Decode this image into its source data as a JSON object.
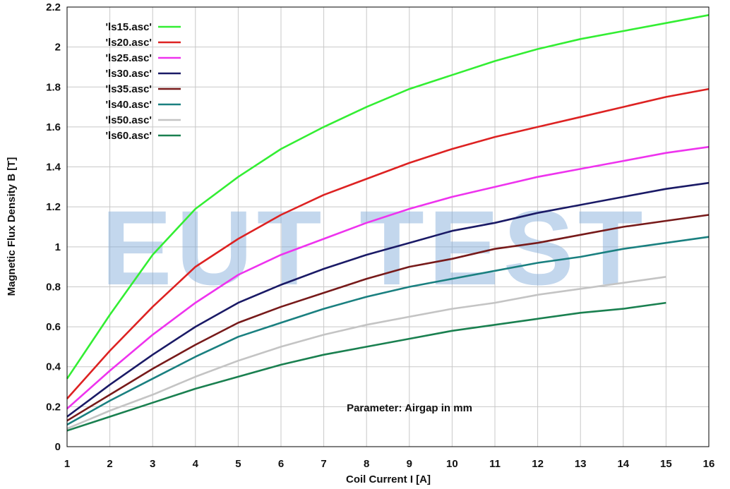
{
  "watermark": "EUT TEST",
  "chart_data": {
    "type": "line",
    "title": "",
    "xlabel": "Coil Current I [A]",
    "ylabel": "Magnetic Flux Density B [T]",
    "xlim": [
      1,
      16
    ],
    "ylim": [
      0,
      2.2
    ],
    "xticks": [
      1,
      2,
      3,
      4,
      5,
      6,
      7,
      8,
      9,
      10,
      11,
      12,
      13,
      14,
      15,
      16
    ],
    "yticks": [
      0,
      0.2,
      0.4,
      0.6,
      0.8,
      1,
      1.2,
      1.4,
      1.6,
      1.8,
      2,
      2.2
    ],
    "grid": true,
    "legend_position": "top-left",
    "annotation": "Parameter: Airgap in mm",
    "x": [
      1,
      2,
      3,
      4,
      5,
      6,
      7,
      8,
      9,
      10,
      11,
      12,
      13,
      14,
      15,
      16
    ],
    "series": [
      {
        "name": "'ls15.asc'",
        "color": "#33ee33",
        "values": [
          0.34,
          0.66,
          0.96,
          1.19,
          1.35,
          1.49,
          1.6,
          1.7,
          1.79,
          1.86,
          1.93,
          1.99,
          2.04,
          2.08,
          2.12,
          2.16
        ]
      },
      {
        "name": "'ls20.asc'",
        "color": "#dd2222",
        "values": [
          0.24,
          0.48,
          0.7,
          0.9,
          1.04,
          1.16,
          1.26,
          1.34,
          1.42,
          1.49,
          1.55,
          1.6,
          1.65,
          1.7,
          1.75,
          1.79
        ]
      },
      {
        "name": "'ls25.asc'",
        "color": "#ee33ee",
        "values": [
          0.19,
          0.38,
          0.56,
          0.72,
          0.86,
          0.96,
          1.04,
          1.12,
          1.19,
          1.25,
          1.3,
          1.35,
          1.39,
          1.43,
          1.47,
          1.5
        ]
      },
      {
        "name": "'ls30.asc'",
        "color": "#1a1a66",
        "values": [
          0.15,
          0.31,
          0.46,
          0.6,
          0.72,
          0.81,
          0.89,
          0.96,
          1.02,
          1.08,
          1.12,
          1.17,
          1.21,
          1.25,
          1.29,
          1.32
        ]
      },
      {
        "name": "'ls35.asc'",
        "color": "#771a1a",
        "values": [
          0.13,
          0.26,
          0.39,
          0.51,
          0.62,
          0.7,
          0.77,
          0.84,
          0.9,
          0.94,
          0.99,
          1.02,
          1.06,
          1.1,
          1.13,
          1.16
        ]
      },
      {
        "name": "'ls40.asc'",
        "color": "#1a8080",
        "values": [
          0.11,
          0.23,
          0.34,
          0.45,
          0.55,
          0.62,
          0.69,
          0.75,
          0.8,
          0.84,
          0.88,
          0.92,
          0.95,
          0.99,
          1.02,
          1.05
        ]
      },
      {
        "name": "'ls50.asc'",
        "color": "#c4c4c4",
        "values": [
          0.09,
          0.18,
          0.26,
          0.35,
          0.43,
          0.5,
          0.56,
          0.61,
          0.65,
          0.69,
          0.72,
          0.76,
          0.79,
          0.82,
          0.85,
          null
        ]
      },
      {
        "name": "'ls60.asc'",
        "color": "#1a8050",
        "values": [
          0.08,
          0.15,
          0.22,
          0.29,
          0.35,
          0.41,
          0.46,
          0.5,
          0.54,
          0.58,
          0.61,
          0.64,
          0.67,
          0.69,
          0.72,
          null
        ]
      }
    ]
  }
}
